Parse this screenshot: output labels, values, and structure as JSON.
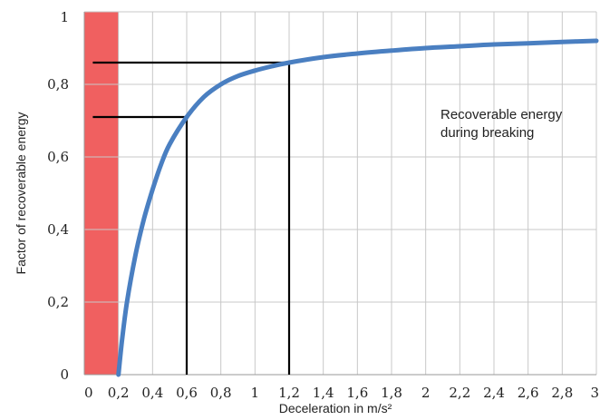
{
  "chart_data": {
    "type": "line",
    "title": "",
    "xlabel": "Deceleration in m/s²",
    "ylabel": "Factor of recoverable energy",
    "xlim": [
      0,
      3
    ],
    "ylim": [
      0,
      1
    ],
    "grid": true,
    "x_ticks": [
      "0",
      "0,2",
      "0,4",
      "0,6",
      "0,8",
      "1",
      "1,2",
      "1,4",
      "1,6",
      "1,8",
      "2",
      "2,2",
      "2,4",
      "2,6",
      "2,8",
      "3"
    ],
    "y_ticks": [
      "0",
      "0,2",
      "0,4",
      "0,6",
      "0,8",
      "1"
    ],
    "series": [
      {
        "color": "#4a7fc1",
        "x": [
          0.2,
          0.22,
          0.25,
          0.3,
          0.35,
          0.4,
          0.45,
          0.5,
          0.6,
          0.7,
          0.8,
          0.9,
          1.0,
          1.1,
          1.2,
          1.4,
          1.6,
          1.8,
          2.0,
          2.2,
          2.4,
          2.6,
          2.8,
          3.0
        ],
        "y": [
          0.0,
          0.09,
          0.2,
          0.33,
          0.43,
          0.51,
          0.58,
          0.635,
          0.71,
          0.765,
          0.8,
          0.823,
          0.838,
          0.85,
          0.86,
          0.875,
          0.885,
          0.893,
          0.9,
          0.905,
          0.91,
          0.913,
          0.917,
          0.92
        ]
      }
    ],
    "shaded_region": {
      "x_from": 0.0,
      "x_to": 0.2,
      "color": "#f06060"
    },
    "reference_points": [
      {
        "x": 0.6,
        "y": 0.71
      },
      {
        "x": 1.2,
        "y": 0.86
      }
    ],
    "annotation": [
      "Recoverable energy",
      "during breaking"
    ]
  }
}
